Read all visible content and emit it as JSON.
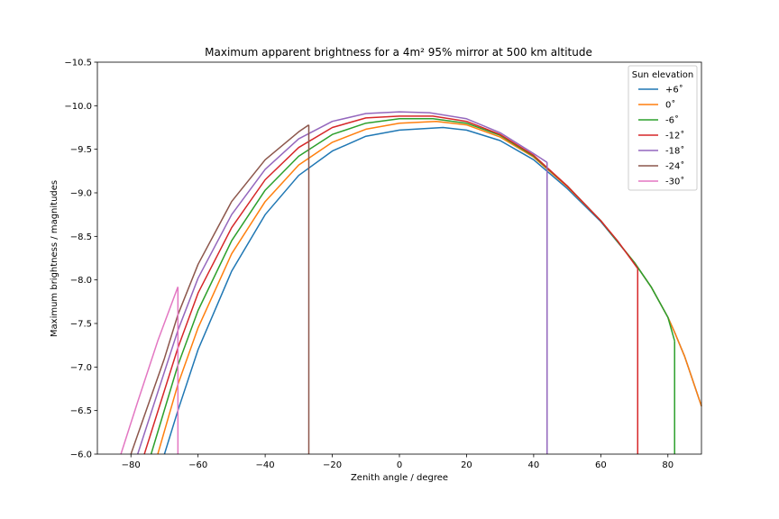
{
  "chart_data": {
    "type": "line",
    "title": "Maximum apparent brightness for a 4m² 95% mirror at 500 km altitude",
    "xlabel": "Zenith angle / degree",
    "ylabel": "Maximum brightness / magnitudes",
    "xlim": [
      -90,
      90
    ],
    "ylim": [
      -6.0,
      -10.5
    ],
    "y_inverted": true,
    "grid": false,
    "xticks": [
      -80,
      -60,
      -40,
      -20,
      0,
      20,
      40,
      60,
      80
    ],
    "xtick_labels": [
      "−80",
      "−60",
      "−40",
      "−20",
      "0",
      "20",
      "40",
      "60",
      "80"
    ],
    "yticks": [
      -6.0,
      -6.5,
      -7.0,
      -7.5,
      -8.0,
      -8.5,
      -9.0,
      -9.5,
      -10.0,
      -10.5
    ],
    "ytick_labels": [
      "−6.0",
      "−6.5",
      "−7.0",
      "−7.5",
      "−8.0",
      "−8.5",
      "−9.0",
      "−9.5",
      "−10.0",
      "−10.5"
    ],
    "legend": {
      "title": "Sun elevation",
      "position": "top-right"
    },
    "series": [
      {
        "name": "+6˚",
        "color": "#1f77b4",
        "x": [
          -70,
          -66,
          -60,
          -50,
          -40,
          -30,
          -20,
          -10,
          0,
          13,
          20,
          30,
          40,
          50,
          60,
          70,
          75,
          80,
          82,
          85,
          90
        ],
        "y": [
          -6.0,
          -6.5,
          -7.2,
          -8.1,
          -8.75,
          -9.2,
          -9.48,
          -9.65,
          -9.72,
          -9.75,
          -9.72,
          -9.6,
          -9.38,
          -9.05,
          -8.67,
          -8.2,
          -7.92,
          -7.57,
          -7.4,
          -7.12,
          -6.55
        ]
      },
      {
        "name": "0˚",
        "color": "#ff7f0e",
        "x": [
          -72,
          -66,
          -60,
          -50,
          -40,
          -30,
          -20,
          -10,
          0,
          11,
          20,
          30,
          40,
          50,
          60,
          70,
          75,
          80,
          82,
          85,
          90
        ],
        "y": [
          -6.0,
          -6.8,
          -7.45,
          -8.3,
          -8.9,
          -9.32,
          -9.58,
          -9.73,
          -9.8,
          -9.82,
          -9.78,
          -9.64,
          -9.41,
          -9.07,
          -8.68,
          -8.2,
          -7.92,
          -7.57,
          -7.4,
          -7.12,
          -6.55
        ]
      },
      {
        "name": "-6˚",
        "color": "#2ca02c",
        "x": [
          -74,
          -66,
          -60,
          -50,
          -40,
          -30,
          -20,
          -10,
          0,
          10,
          20,
          30,
          40,
          50,
          60,
          70,
          75,
          80,
          82
        ],
        "y": [
          -6.0,
          -7.02,
          -7.65,
          -8.45,
          -9.03,
          -9.42,
          -9.67,
          -9.8,
          -9.85,
          -9.85,
          -9.8,
          -9.66,
          -9.42,
          -9.08,
          -8.68,
          -8.2,
          -7.92,
          -7.57,
          -7.3
        ]
      },
      {
        "name": "-12˚",
        "color": "#d62728",
        "x": [
          -76,
          -66,
          -60,
          -50,
          -40,
          -30,
          -20,
          -10,
          0,
          10,
          20,
          30,
          40,
          50,
          60,
          65,
          71
        ],
        "y": [
          -6.0,
          -7.22,
          -7.85,
          -8.6,
          -9.15,
          -9.52,
          -9.75,
          -9.86,
          -9.88,
          -9.88,
          -9.82,
          -9.67,
          -9.43,
          -9.08,
          -8.68,
          -8.45,
          -8.13
        ]
      },
      {
        "name": "-18˚",
        "color": "#9467bd",
        "x": [
          -78,
          -66,
          -60,
          -50,
          -40,
          -30,
          -20,
          -10,
          0,
          9,
          20,
          30,
          40,
          44
        ],
        "y": [
          -6.0,
          -7.42,
          -8.02,
          -8.75,
          -9.27,
          -9.62,
          -9.82,
          -9.91,
          -9.93,
          -9.92,
          -9.85,
          -9.69,
          -9.45,
          -9.35
        ]
      },
      {
        "name": "-24˚",
        "color": "#8c564b",
        "x": [
          -80,
          -70,
          -66,
          -60,
          -50,
          -40,
          -30,
          -27
        ],
        "y": [
          -6.0,
          -7.1,
          -7.6,
          -8.18,
          -8.9,
          -9.38,
          -9.7,
          -9.78
        ]
      },
      {
        "name": "-30˚",
        "color": "#e377c2",
        "x": [
          -83,
          -78,
          -72,
          -66
        ],
        "y": [
          -6.0,
          -6.6,
          -7.3,
          -7.92
        ]
      }
    ],
    "cutoffs": [
      {
        "x": -66,
        "y_top": -7.92,
        "color": "#e377c2"
      },
      {
        "x": -27,
        "y_top": -9.78,
        "color": "#8c564b"
      },
      {
        "x": 44,
        "y_top": -9.35,
        "color": "#9467bd"
      },
      {
        "x": 71,
        "y_top": -8.13,
        "color": "#d62728"
      },
      {
        "x": 82,
        "y_top": -7.3,
        "color": "#2ca02c"
      }
    ]
  }
}
